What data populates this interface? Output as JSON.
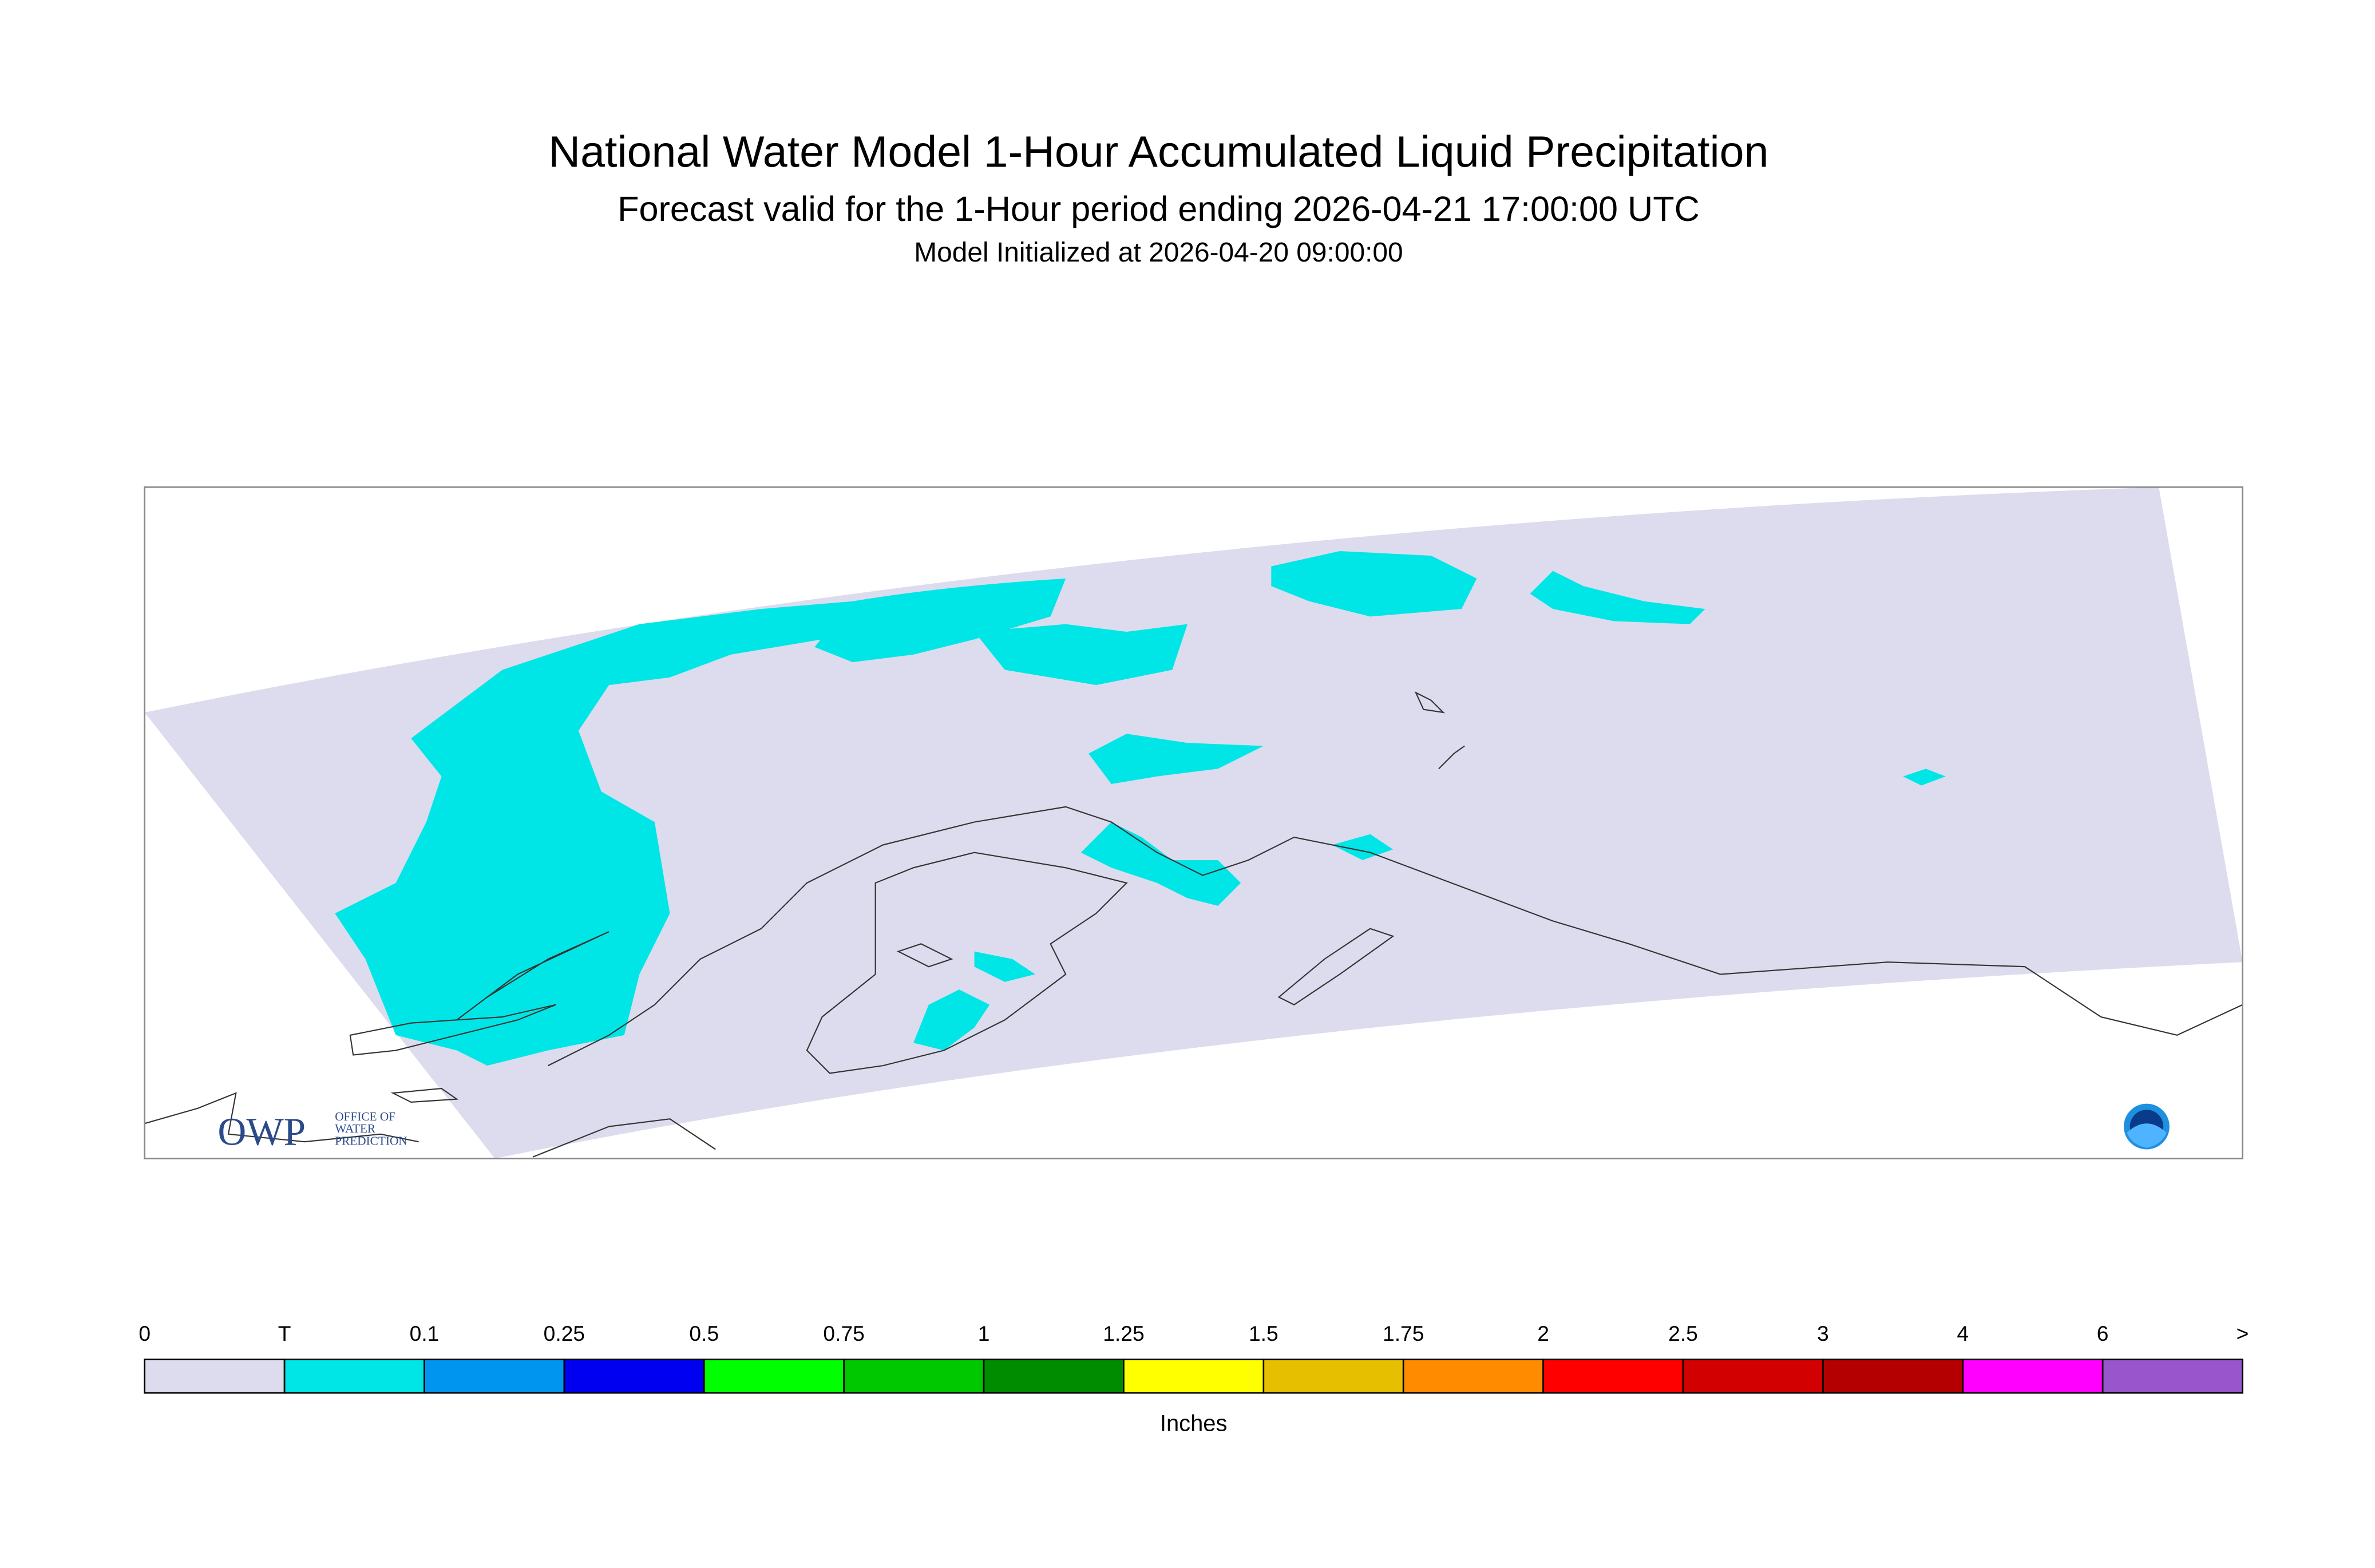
{
  "header": {
    "title": "National Water Model 1-Hour Accumulated Liquid Precipitation",
    "subtitle": "Forecast valid for the 1-Hour period ending 2026-04-21 17:00:00 UTC",
    "initialized": "Model Initialized at 2026-04-20 09:00:00"
  },
  "logo": {
    "name": "OWP",
    "line1": "OFFICE OF",
    "line2": "WATER",
    "line3": "PREDICTION"
  },
  "legend": {
    "labels": [
      "0",
      "T",
      "0.1",
      "0.25",
      "0.5",
      "0.75",
      "1",
      "1.25",
      "1.5",
      "1.75",
      "2",
      "2.5",
      "3",
      "4",
      "6",
      ">"
    ],
    "colors": [
      "#dcdcee",
      "#00e6e6",
      "#0096f0",
      "#0000f0",
      "#00ff00",
      "#00c800",
      "#008c00",
      "#ffff00",
      "#e6c000",
      "#ff8c00",
      "#ff0000",
      "#d20000",
      "#b40000",
      "#ff00ff",
      "#9955cc"
    ],
    "units": "Inches"
  }
}
